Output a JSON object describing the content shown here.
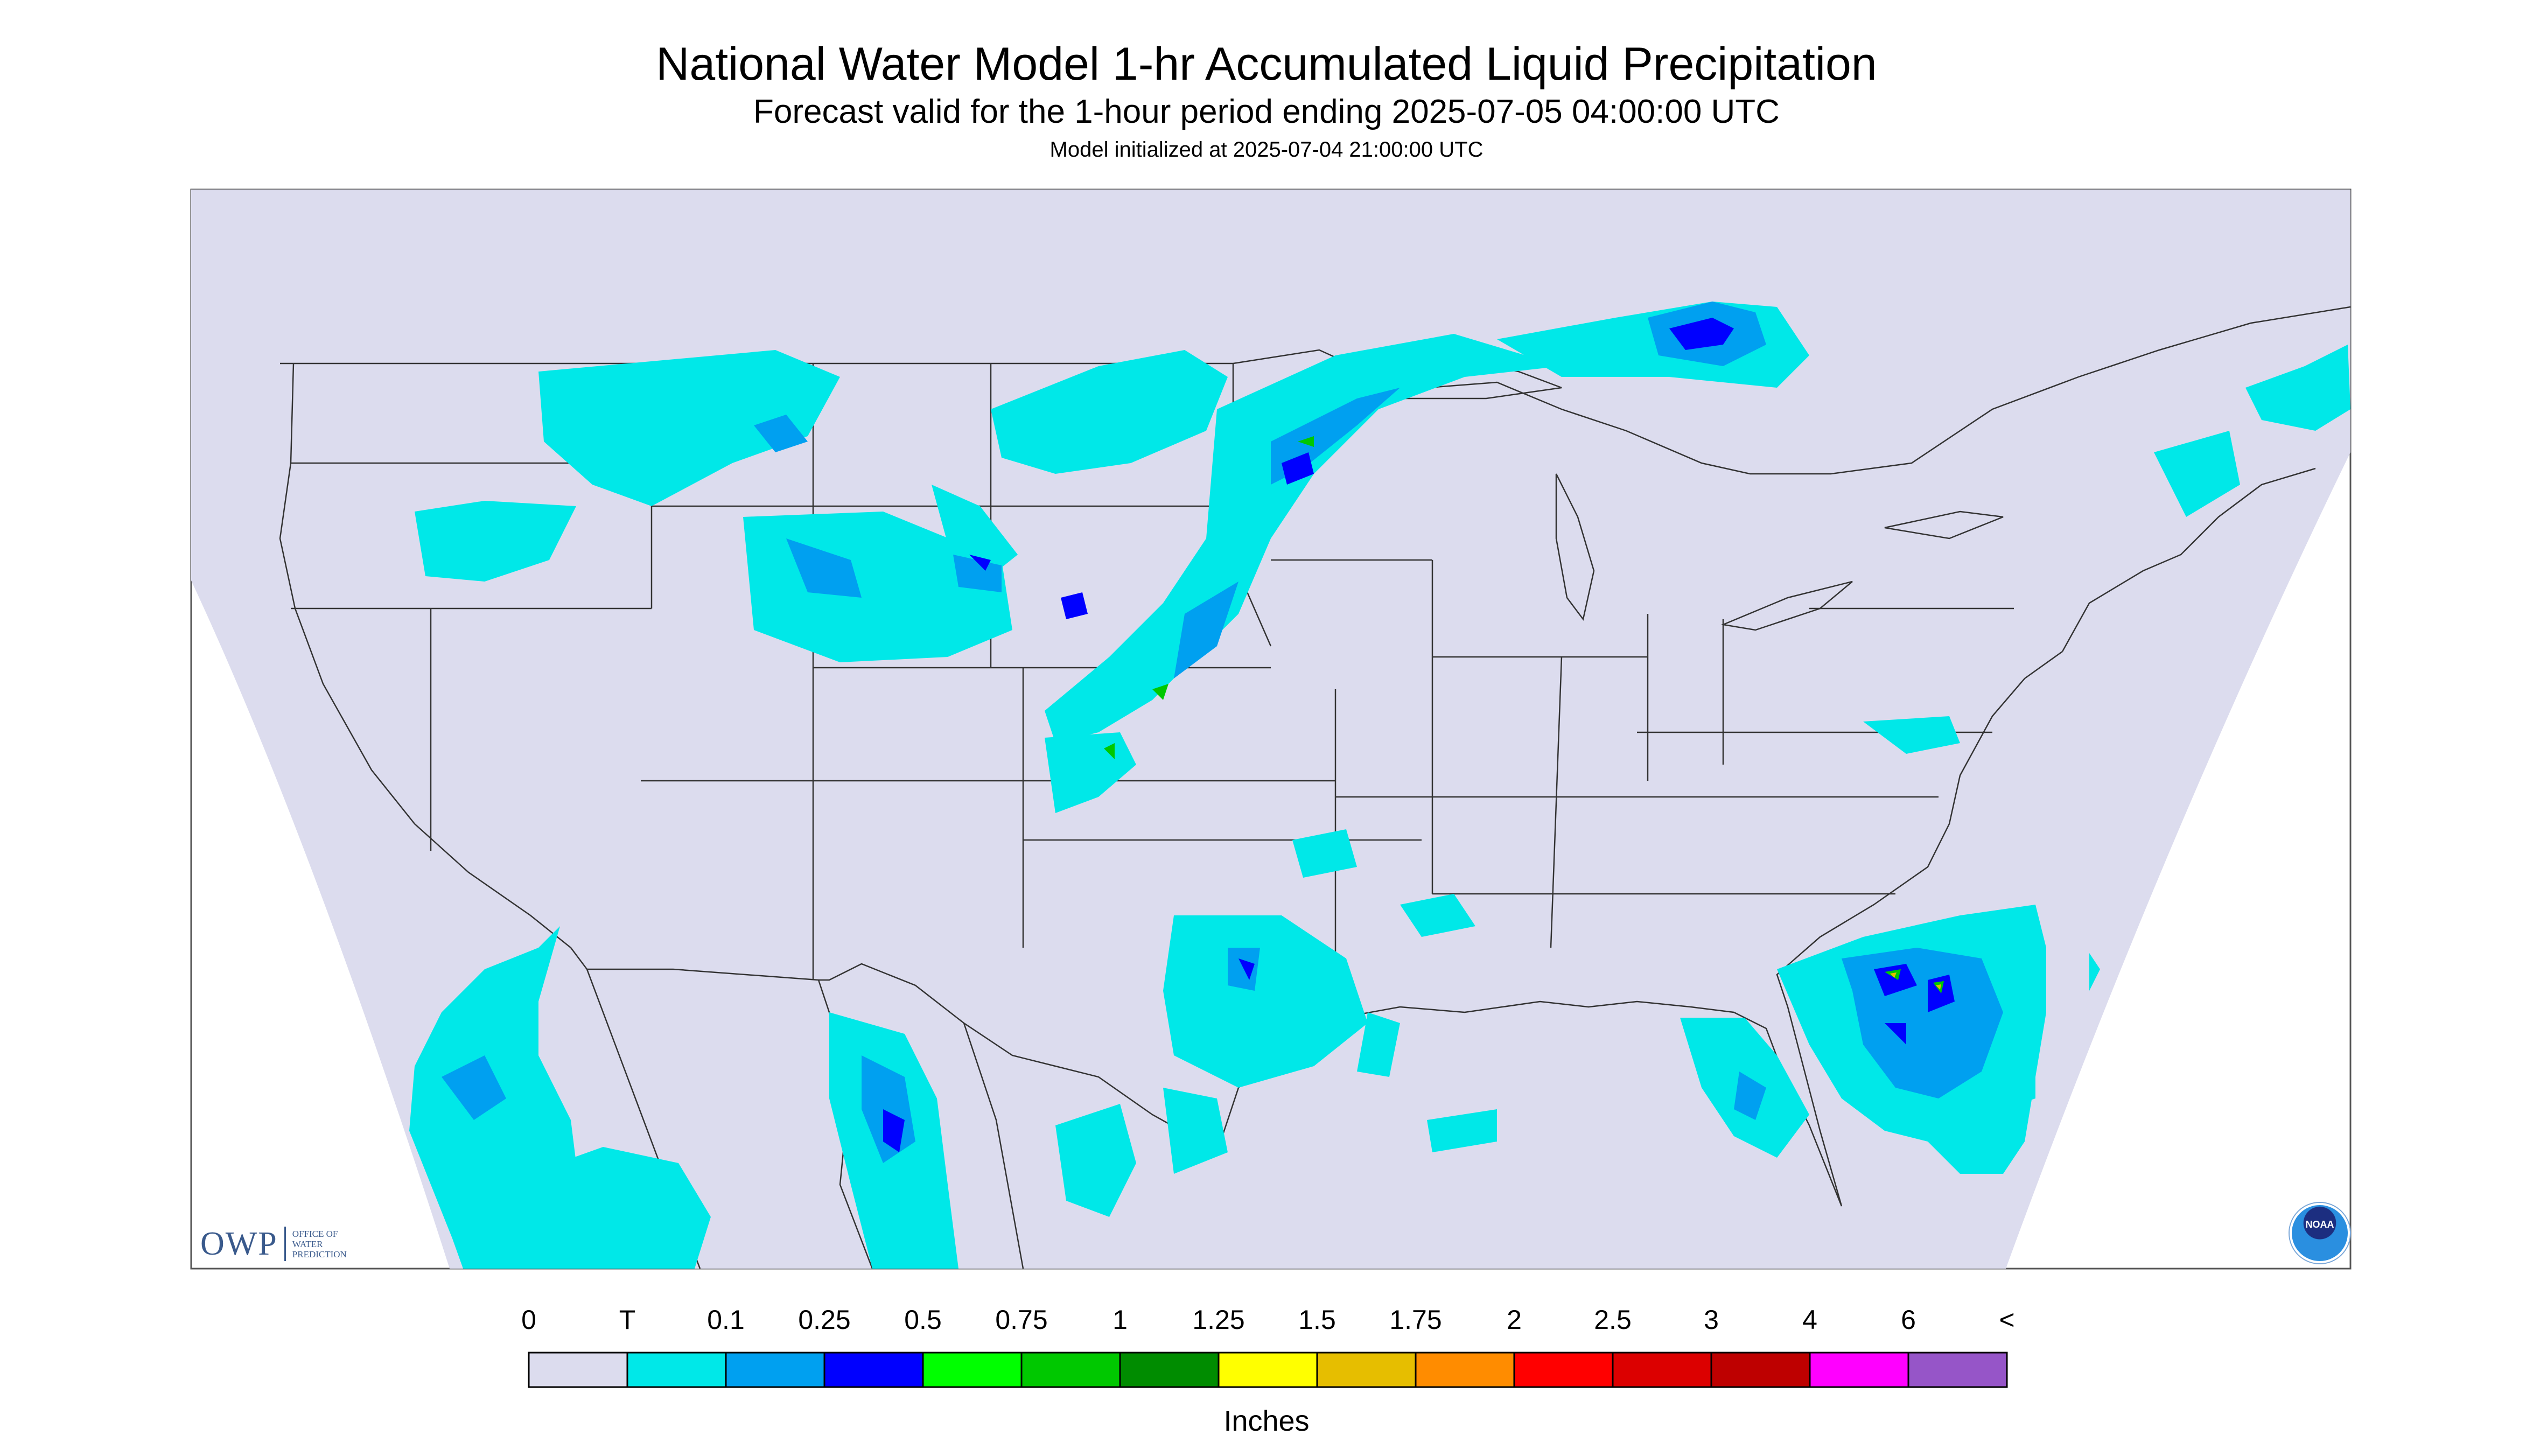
{
  "header": {
    "title": "National Water Model 1-hr Accumulated Liquid Precipitation",
    "subtitle": "Forecast valid for the 1-hour period ending 2025-07-05 04:00:00 UTC",
    "init_line": "Model initialized at 2025-07-04 21:00:00 UTC"
  },
  "logos": {
    "owp_mark": "OWP",
    "owp_line1": "OFFICE OF",
    "owp_line2": "WATER",
    "owp_line3": "PREDICTION",
    "noaa_text": "NOAA"
  },
  "legend": {
    "units": "Inches",
    "labels": [
      "0",
      "T",
      "0.1",
      "0.25",
      "0.5",
      "0.75",
      "1",
      "1.25",
      "1.5",
      "1.75",
      "2",
      "2.5",
      "3",
      "4",
      "6",
      "<"
    ],
    "colors": [
      "#dcdcee",
      "#00e8e8",
      "#00a0f0",
      "#0000ff",
      "#00ff00",
      "#00c800",
      "#008c00",
      "#ffff00",
      "#e6be00",
      "#ff8c00",
      "#ff0000",
      "#dc0000",
      "#be0000",
      "#ff00ff",
      "#9655c8"
    ]
  },
  "colors": {
    "background_fill": "#dcdcee",
    "land_fill": "#dcdcee",
    "border": "#333333",
    "trace": "#00e8e8",
    "light": "#00a0f0",
    "moderate": "#0000ff",
    "heavy": "#00c800",
    "very_heavy": "#e6be00"
  }
}
